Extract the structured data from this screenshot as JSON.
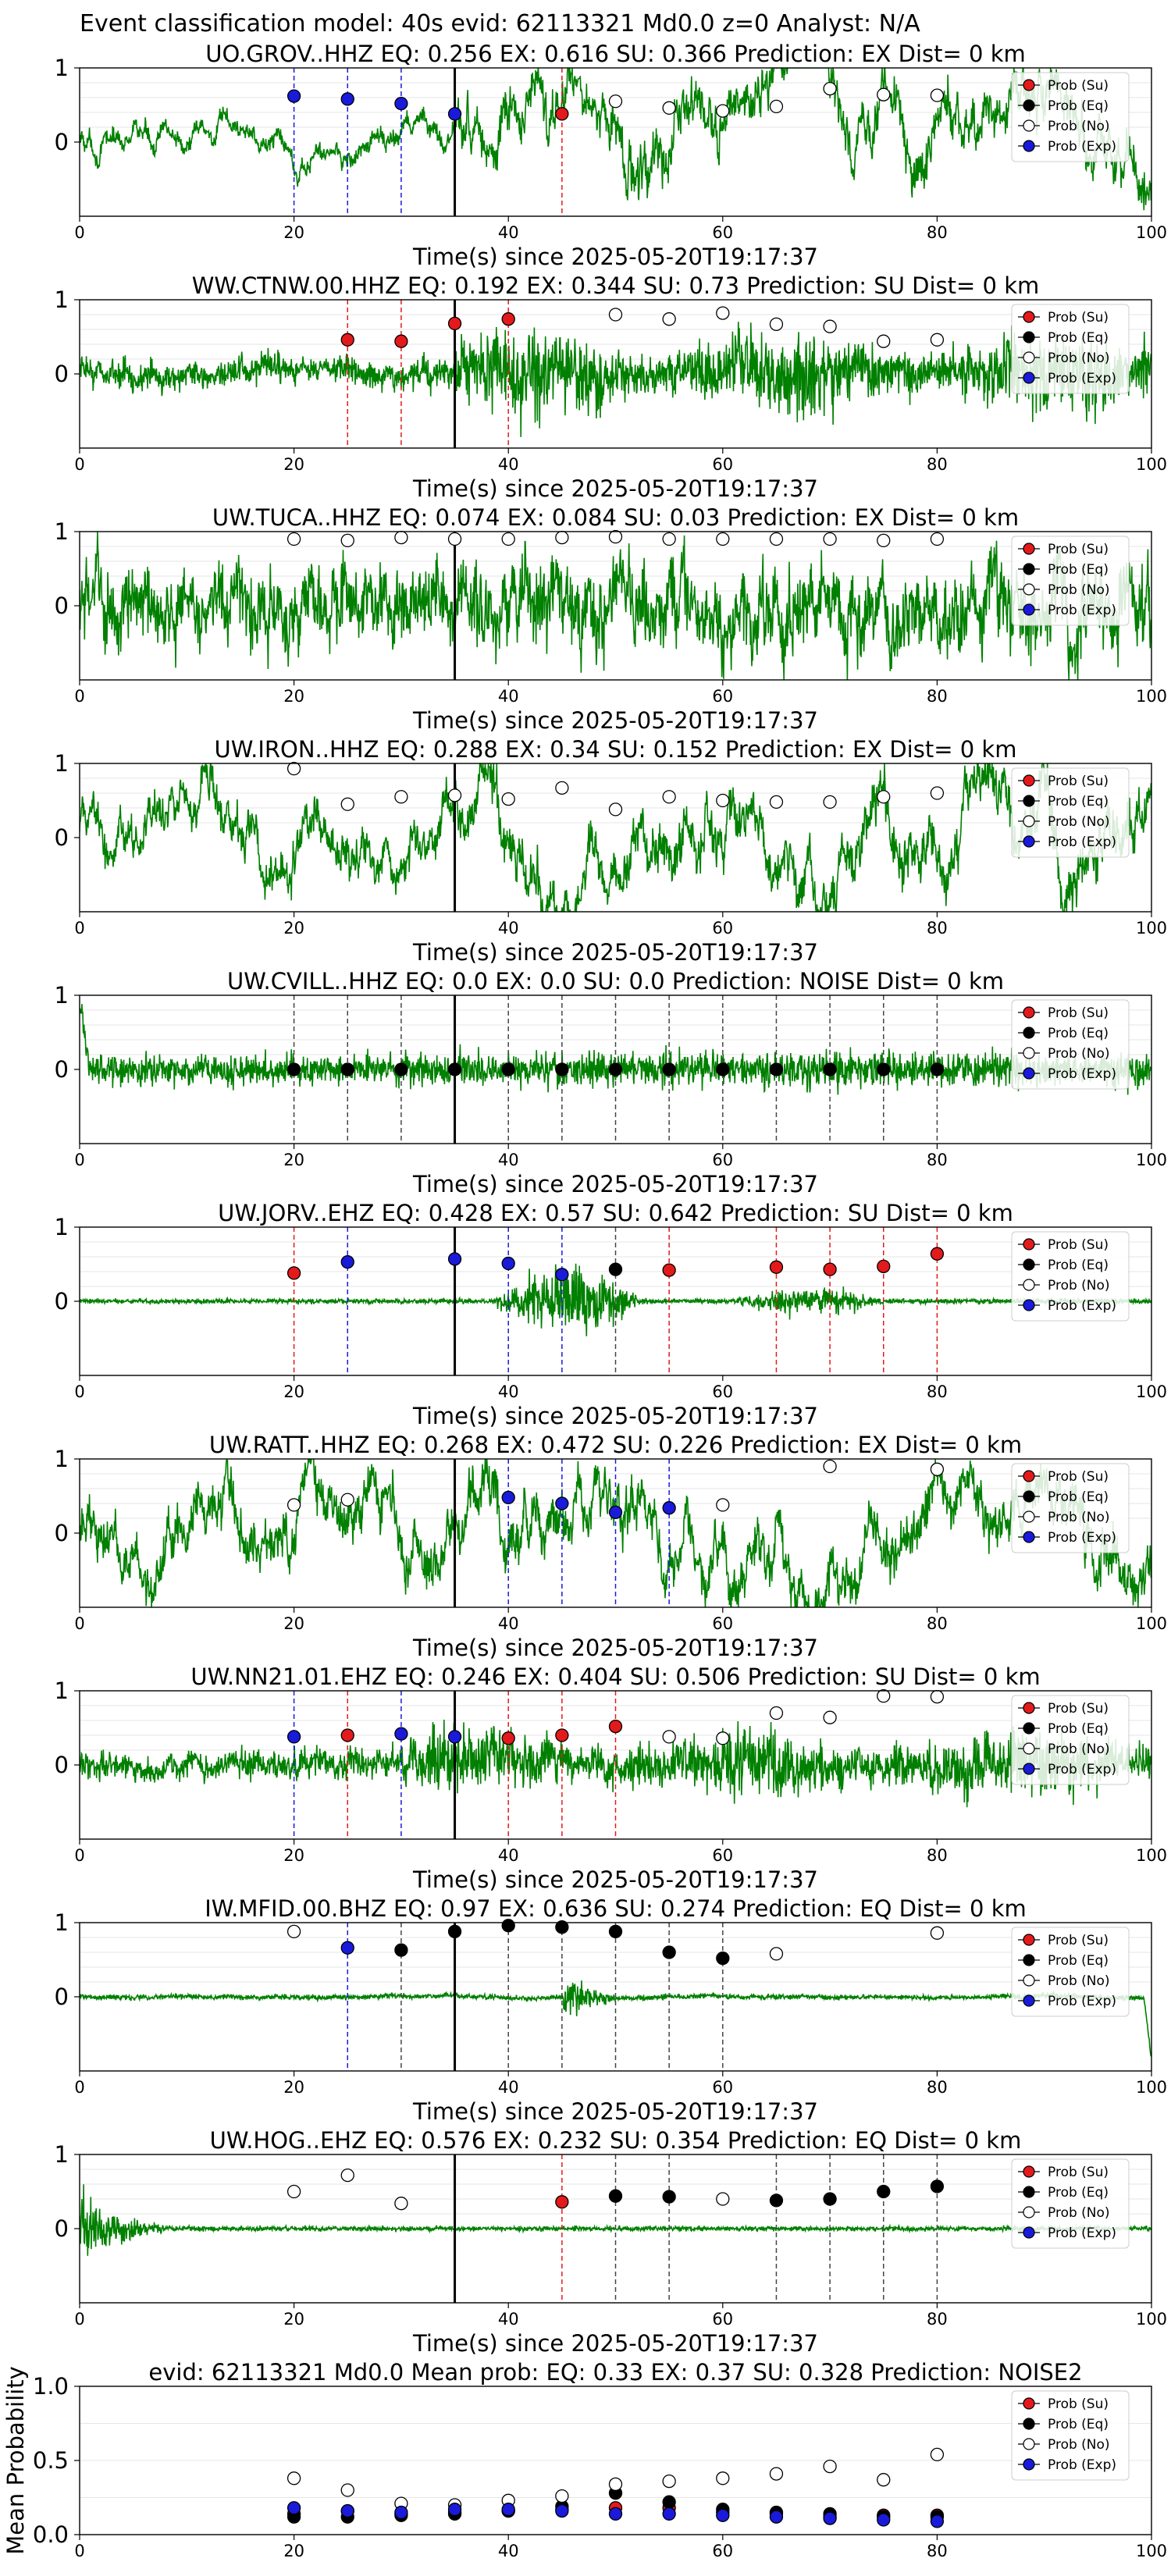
{
  "figure": {
    "title": "Event classification model: 40s evid: 62113321 Md0.0 z=0 Analyst: N/A"
  },
  "legend_labels": [
    "Prob (Su)",
    "Prob (Eq)",
    "Prob (No)",
    "Prob (Exp)"
  ],
  "colors": {
    "su": "#e31a1c",
    "eq": "#000000",
    "no": "#ffffff",
    "exp": "#1a1adb",
    "waveform": "#008000"
  },
  "chart_data": [
    {
      "type": "line",
      "station": "UO.GROV..HHZ",
      "title": "UO.GROV..HHZ   EQ: 0.256  EX: 0.616  SU: 0.366   Prediction: EX    Dist= 0 km",
      "xlabel": "Time(s) since 2025-05-20T19:17:37",
      "xlim": [
        0,
        100
      ],
      "ylim": [
        -1,
        1
      ],
      "xticks": [
        "0",
        "20",
        "40",
        "60",
        "80",
        "100"
      ],
      "yticks": [
        "1",
        "0"
      ],
      "waveform": {
        "character": "long-period",
        "amplitude": 0.35,
        "onset": 35,
        "post_amplitude": 0.8
      },
      "event_line": 35,
      "points": [
        {
          "t": 20,
          "p": 0.62,
          "cls": "exp"
        },
        {
          "t": 25,
          "p": 0.58,
          "cls": "exp"
        },
        {
          "t": 30,
          "p": 0.52,
          "cls": "exp"
        },
        {
          "t": 35,
          "p": 0.38,
          "cls": "exp"
        },
        {
          "t": 45,
          "p": 0.38,
          "cls": "su"
        },
        {
          "t": 50,
          "p": 0.55,
          "cls": "no"
        },
        {
          "t": 55,
          "p": 0.46,
          "cls": "no"
        },
        {
          "t": 60,
          "p": 0.42,
          "cls": "no"
        },
        {
          "t": 65,
          "p": 0.48,
          "cls": "no"
        },
        {
          "t": 70,
          "p": 0.72,
          "cls": "no"
        },
        {
          "t": 75,
          "p": 0.64,
          "cls": "no"
        },
        {
          "t": 80,
          "p": 0.63,
          "cls": "no"
        }
      ]
    },
    {
      "type": "line",
      "station": "WW.CTNW.00.HHZ",
      "title": "WW.CTNW.00.HHZ   EQ: 0.192  EX: 0.344  SU: 0.73   Prediction: SU    Dist= 0 km",
      "xlabel": "Time(s) since 2025-05-20T19:17:37",
      "xlim": [
        0,
        100
      ],
      "ylim": [
        -1,
        1
      ],
      "xticks": [
        "0",
        "20",
        "40",
        "60",
        "80",
        "100"
      ],
      "yticks": [
        "1",
        "0"
      ],
      "waveform": {
        "character": "mixed",
        "amplitude": 0.3,
        "onset": 35,
        "post_amplitude": 0.95
      },
      "event_line": 35,
      "points": [
        {
          "t": 25,
          "p": 0.46,
          "cls": "su"
        },
        {
          "t": 30,
          "p": 0.44,
          "cls": "su"
        },
        {
          "t": 35,
          "p": 0.68,
          "cls": "su"
        },
        {
          "t": 40,
          "p": 0.74,
          "cls": "su"
        },
        {
          "t": 50,
          "p": 0.8,
          "cls": "no"
        },
        {
          "t": 55,
          "p": 0.74,
          "cls": "no"
        },
        {
          "t": 60,
          "p": 0.82,
          "cls": "no"
        },
        {
          "t": 65,
          "p": 0.67,
          "cls": "no"
        },
        {
          "t": 70,
          "p": 0.64,
          "cls": "no"
        },
        {
          "t": 75,
          "p": 0.44,
          "cls": "no"
        },
        {
          "t": 80,
          "p": 0.46,
          "cls": "no"
        }
      ]
    },
    {
      "type": "line",
      "station": "UW.TUCA..HHZ",
      "title": "UW.TUCA..HHZ   EQ: 0.074  EX: 0.084  SU: 0.03   Prediction: EX    Dist= 0 km",
      "xlabel": "Time(s) since 2025-05-20T19:17:37",
      "xlim": [
        0,
        100
      ],
      "ylim": [
        -1,
        1
      ],
      "xticks": [
        "0",
        "20",
        "40",
        "60",
        "80",
        "100"
      ],
      "yticks": [
        "1",
        "0"
      ],
      "waveform": {
        "character": "broadband",
        "amplitude": 0.85,
        "onset": 35,
        "post_amplitude": 0.9
      },
      "event_line": 35,
      "points": [
        {
          "t": 20,
          "p": 0.9,
          "cls": "no"
        },
        {
          "t": 25,
          "p": 0.88,
          "cls": "no"
        },
        {
          "t": 30,
          "p": 0.92,
          "cls": "no"
        },
        {
          "t": 35,
          "p": 0.9,
          "cls": "no"
        },
        {
          "t": 40,
          "p": 0.9,
          "cls": "no"
        },
        {
          "t": 45,
          "p": 0.92,
          "cls": "no"
        },
        {
          "t": 50,
          "p": 0.93,
          "cls": "no"
        },
        {
          "t": 55,
          "p": 0.9,
          "cls": "no"
        },
        {
          "t": 60,
          "p": 0.9,
          "cls": "no"
        },
        {
          "t": 65,
          "p": 0.9,
          "cls": "no"
        },
        {
          "t": 70,
          "p": 0.9,
          "cls": "no"
        },
        {
          "t": 75,
          "p": 0.88,
          "cls": "no"
        },
        {
          "t": 80,
          "p": 0.9,
          "cls": "no"
        }
      ]
    },
    {
      "type": "line",
      "station": "UW.IRON..HHZ",
      "title": "UW.IRON..HHZ   EQ: 0.288  EX: 0.34  SU: 0.152   Prediction: EX    Dist= 0 km",
      "xlabel": "Time(s) since 2025-05-20T19:17:37",
      "xlim": [
        0,
        100
      ],
      "ylim": [
        -1,
        1
      ],
      "xticks": [
        "0",
        "20",
        "40",
        "60",
        "80",
        "100"
      ],
      "yticks": [
        "1",
        "0"
      ],
      "waveform": {
        "character": "long-period",
        "amplitude": 0.7,
        "onset": 35,
        "post_amplitude": 0.85
      },
      "event_line": 35,
      "points": [
        {
          "t": 20,
          "p": 0.93,
          "cls": "no"
        },
        {
          "t": 25,
          "p": 0.45,
          "cls": "no"
        },
        {
          "t": 30,
          "p": 0.55,
          "cls": "no"
        },
        {
          "t": 35,
          "p": 0.57,
          "cls": "no"
        },
        {
          "t": 40,
          "p": 0.52,
          "cls": "no"
        },
        {
          "t": 45,
          "p": 0.67,
          "cls": "no"
        },
        {
          "t": 50,
          "p": 0.38,
          "cls": "no"
        },
        {
          "t": 55,
          "p": 0.55,
          "cls": "no"
        },
        {
          "t": 60,
          "p": 0.5,
          "cls": "no"
        },
        {
          "t": 65,
          "p": 0.48,
          "cls": "no"
        },
        {
          "t": 70,
          "p": 0.48,
          "cls": "no"
        },
        {
          "t": 75,
          "p": 0.55,
          "cls": "no"
        },
        {
          "t": 80,
          "p": 0.6,
          "cls": "no"
        }
      ]
    },
    {
      "type": "line",
      "station": "UW.CVILL..HHZ",
      "title": "UW.CVILL..HHZ   EQ: 0.0  EX: 0.0  SU: 0.0   Prediction: NOISE    Dist= 0 km",
      "xlabel": "Time(s) since 2025-05-20T19:17:37",
      "xlim": [
        0,
        100
      ],
      "ylim": [
        -1,
        1
      ],
      "xticks": [
        "0",
        "20",
        "40",
        "60",
        "80",
        "100"
      ],
      "yticks": [
        "1",
        "0"
      ],
      "waveform": {
        "character": "noise",
        "amplitude": 0.45,
        "onset": 35,
        "post_amplitude": 0.5
      },
      "event_line": 35,
      "points": [
        {
          "t": 20,
          "p": 0.0,
          "cls": "eq"
        },
        {
          "t": 25,
          "p": 0.0,
          "cls": "eq"
        },
        {
          "t": 30,
          "p": 0.0,
          "cls": "eq"
        },
        {
          "t": 35,
          "p": 0.0,
          "cls": "eq"
        },
        {
          "t": 40,
          "p": 0.0,
          "cls": "eq"
        },
        {
          "t": 45,
          "p": 0.0,
          "cls": "eq"
        },
        {
          "t": 50,
          "p": 0.0,
          "cls": "eq"
        },
        {
          "t": 55,
          "p": 0.0,
          "cls": "eq"
        },
        {
          "t": 60,
          "p": 0.0,
          "cls": "eq"
        },
        {
          "t": 65,
          "p": 0.0,
          "cls": "eq"
        },
        {
          "t": 70,
          "p": 0.0,
          "cls": "eq"
        },
        {
          "t": 75,
          "p": 0.0,
          "cls": "eq"
        },
        {
          "t": 80,
          "p": 0.0,
          "cls": "eq"
        }
      ]
    },
    {
      "type": "line",
      "station": "UW.JORV..EHZ",
      "title": "UW.JORV..EHZ   EQ: 0.428  EX: 0.57  SU: 0.642   Prediction: SU    Dist= 0 km",
      "xlabel": "Time(s) since 2025-05-20T19:17:37",
      "xlim": [
        0,
        100
      ],
      "ylim": [
        -1,
        1
      ],
      "xticks": [
        "0",
        "20",
        "40",
        "60",
        "80",
        "100"
      ],
      "yticks": [
        "1",
        "0"
      ],
      "waveform": {
        "character": "quiet-burst",
        "amplitude": 0.04,
        "onset": 38,
        "post_amplitude": 0.7
      },
      "event_line": 35,
      "points": [
        {
          "t": 20,
          "p": 0.38,
          "cls": "su"
        },
        {
          "t": 25,
          "p": 0.53,
          "cls": "exp"
        },
        {
          "t": 35,
          "p": 0.57,
          "cls": "exp"
        },
        {
          "t": 40,
          "p": 0.51,
          "cls": "exp"
        },
        {
          "t": 45,
          "p": 0.36,
          "cls": "exp"
        },
        {
          "t": 50,
          "p": 0.43,
          "cls": "eq"
        },
        {
          "t": 55,
          "p": 0.42,
          "cls": "su"
        },
        {
          "t": 65,
          "p": 0.46,
          "cls": "su"
        },
        {
          "t": 70,
          "p": 0.43,
          "cls": "su"
        },
        {
          "t": 75,
          "p": 0.47,
          "cls": "su"
        },
        {
          "t": 80,
          "p": 0.64,
          "cls": "su"
        }
      ]
    },
    {
      "type": "line",
      "station": "UW.RATT..HHZ",
      "title": "UW.RATT..HHZ   EQ: 0.268  EX: 0.472  SU: 0.226   Prediction: EX    Dist= 0 km",
      "xlabel": "Time(s) since 2025-05-20T19:17:37",
      "xlim": [
        0,
        100
      ],
      "ylim": [
        -1,
        1
      ],
      "xticks": [
        "0",
        "20",
        "40",
        "60",
        "80",
        "100"
      ],
      "yticks": [
        "1",
        "0"
      ],
      "waveform": {
        "character": "long-period",
        "amplitude": 0.8,
        "onset": 35,
        "post_amplitude": 0.85
      },
      "event_line": 35,
      "points": [
        {
          "t": 20,
          "p": 0.38,
          "cls": "no"
        },
        {
          "t": 25,
          "p": 0.45,
          "cls": "no"
        },
        {
          "t": 40,
          "p": 0.48,
          "cls": "exp"
        },
        {
          "t": 45,
          "p": 0.4,
          "cls": "exp"
        },
        {
          "t": 50,
          "p": 0.28,
          "cls": "exp"
        },
        {
          "t": 55,
          "p": 0.34,
          "cls": "exp"
        },
        {
          "t": 60,
          "p": 0.38,
          "cls": "no"
        },
        {
          "t": 70,
          "p": 0.9,
          "cls": "no"
        },
        {
          "t": 80,
          "p": 0.86,
          "cls": "no"
        }
      ]
    },
    {
      "type": "line",
      "station": "UW.NN21.01.EHZ",
      "title": "UW.NN21.01.EHZ   EQ: 0.246  EX: 0.404  SU: 0.506   Prediction: SU    Dist= 0 km",
      "xlabel": "Time(s) since 2025-05-20T19:17:37",
      "xlim": [
        0,
        100
      ],
      "ylim": [
        -1,
        1
      ],
      "xticks": [
        "0",
        "20",
        "40",
        "60",
        "80",
        "100"
      ],
      "yticks": [
        "1",
        "0"
      ],
      "waveform": {
        "character": "mixed",
        "amplitude": 0.3,
        "onset": 30,
        "post_amplitude": 0.75
      },
      "event_line": 35,
      "points": [
        {
          "t": 20,
          "p": 0.38,
          "cls": "exp"
        },
        {
          "t": 25,
          "p": 0.4,
          "cls": "su"
        },
        {
          "t": 30,
          "p": 0.42,
          "cls": "exp"
        },
        {
          "t": 35,
          "p": 0.38,
          "cls": "exp"
        },
        {
          "t": 40,
          "p": 0.36,
          "cls": "su"
        },
        {
          "t": 45,
          "p": 0.4,
          "cls": "su"
        },
        {
          "t": 50,
          "p": 0.52,
          "cls": "su"
        },
        {
          "t": 55,
          "p": 0.38,
          "cls": "no"
        },
        {
          "t": 60,
          "p": 0.36,
          "cls": "no"
        },
        {
          "t": 65,
          "p": 0.7,
          "cls": "no"
        },
        {
          "t": 70,
          "p": 0.64,
          "cls": "no"
        },
        {
          "t": 75,
          "p": 0.93,
          "cls": "no"
        },
        {
          "t": 80,
          "p": 0.92,
          "cls": "no"
        }
      ]
    },
    {
      "type": "line",
      "station": "IW.MFID.00.BHZ",
      "title": "IW.MFID.00.BHZ   EQ: 0.97  EX: 0.636  SU: 0.274   Prediction: EQ    Dist= 0 km",
      "xlabel": "Time(s) since 2025-05-20T19:17:37",
      "xlim": [
        0,
        100
      ],
      "ylim": [
        -1,
        1
      ],
      "xticks": [
        "0",
        "20",
        "40",
        "60",
        "80",
        "100"
      ],
      "yticks": [
        "1",
        "0"
      ],
      "waveform": {
        "character": "flat",
        "amplitude": 0.02,
        "onset": 45,
        "post_amplitude": 0.08
      },
      "event_line": 35,
      "points": [
        {
          "t": 20,
          "p": 0.88,
          "cls": "no"
        },
        {
          "t": 25,
          "p": 0.66,
          "cls": "exp"
        },
        {
          "t": 30,
          "p": 0.63,
          "cls": "eq"
        },
        {
          "t": 35,
          "p": 0.88,
          "cls": "eq"
        },
        {
          "t": 40,
          "p": 0.96,
          "cls": "eq"
        },
        {
          "t": 45,
          "p": 0.94,
          "cls": "eq"
        },
        {
          "t": 50,
          "p": 0.88,
          "cls": "eq"
        },
        {
          "t": 55,
          "p": 0.6,
          "cls": "eq"
        },
        {
          "t": 60,
          "p": 0.52,
          "cls": "eq"
        },
        {
          "t": 65,
          "p": 0.58,
          "cls": "no"
        },
        {
          "t": 80,
          "p": 0.86,
          "cls": "no"
        }
      ]
    },
    {
      "type": "line",
      "station": "UW.HOG..EHZ",
      "title": "UW.HOG..EHZ   EQ: 0.576  EX: 0.232  SU: 0.354   Prediction: EQ    Dist= 0 km",
      "xlabel": "Time(s) since 2025-05-20T19:17:37",
      "xlim": [
        0,
        100
      ],
      "ylim": [
        -1,
        1
      ],
      "xticks": [
        "0",
        "20",
        "40",
        "60",
        "80",
        "100"
      ],
      "yticks": [
        "1",
        "0"
      ],
      "waveform": {
        "character": "early-burst",
        "amplitude": 0.06,
        "onset": 0,
        "post_amplitude": 0.06
      },
      "event_line": 35,
      "points": [
        {
          "t": 20,
          "p": 0.5,
          "cls": "no"
        },
        {
          "t": 25,
          "p": 0.72,
          "cls": "no"
        },
        {
          "t": 30,
          "p": 0.34,
          "cls": "no"
        },
        {
          "t": 45,
          "p": 0.36,
          "cls": "su"
        },
        {
          "t": 50,
          "p": 0.44,
          "cls": "eq"
        },
        {
          "t": 55,
          "p": 0.43,
          "cls": "eq"
        },
        {
          "t": 60,
          "p": 0.4,
          "cls": "no"
        },
        {
          "t": 65,
          "p": 0.38,
          "cls": "eq"
        },
        {
          "t": 70,
          "p": 0.4,
          "cls": "eq"
        },
        {
          "t": 75,
          "p": 0.5,
          "cls": "eq"
        },
        {
          "t": 80,
          "p": 0.57,
          "cls": "eq"
        }
      ]
    },
    {
      "type": "scatter",
      "station": "mean",
      "title": "evid: 62113321  Md0.0   Mean prob:   EQ: 0.33  EX: 0.37  SU: 0.328   Prediction: NOISE2",
      "ylabel": "Mean Probability",
      "xlim": [
        0,
        100
      ],
      "ylim": [
        0,
        1
      ],
      "xticks": [
        "0",
        "20",
        "40",
        "60",
        "80",
        "100"
      ],
      "yticks": [
        "1.0",
        "0.5",
        "0.0"
      ],
      "series": [
        {
          "name": "Prob (Su)",
          "cls": "su",
          "x": [
            20,
            25,
            30,
            35,
            40,
            45,
            50,
            55,
            60,
            65,
            70,
            75,
            80
          ],
          "y": [
            0.14,
            0.16,
            0.14,
            0.15,
            0.16,
            0.17,
            0.18,
            0.18,
            0.15,
            0.14,
            0.12,
            0.13,
            0.13
          ]
        },
        {
          "name": "Prob (Eq)",
          "cls": "eq",
          "x": [
            20,
            25,
            30,
            35,
            40,
            45,
            50,
            55,
            60,
            65,
            70,
            75,
            80
          ],
          "y": [
            0.12,
            0.12,
            0.13,
            0.14,
            0.16,
            0.19,
            0.28,
            0.22,
            0.17,
            0.15,
            0.14,
            0.12,
            0.12
          ]
        },
        {
          "name": "Prob (No)",
          "cls": "no",
          "x": [
            20,
            25,
            30,
            35,
            40,
            45,
            50,
            55,
            60,
            65,
            70,
            75,
            80
          ],
          "y": [
            0.38,
            0.3,
            0.21,
            0.2,
            0.23,
            0.26,
            0.34,
            0.36,
            0.38,
            0.41,
            0.46,
            0.37,
            0.54
          ]
        },
        {
          "name": "Prob (Exp)",
          "cls": "exp",
          "x": [
            20,
            25,
            30,
            35,
            40,
            45,
            50,
            55,
            60,
            65,
            70,
            75,
            80
          ],
          "y": [
            0.18,
            0.16,
            0.15,
            0.17,
            0.17,
            0.16,
            0.14,
            0.14,
            0.13,
            0.12,
            0.11,
            0.1,
            0.09
          ]
        }
      ]
    }
  ]
}
